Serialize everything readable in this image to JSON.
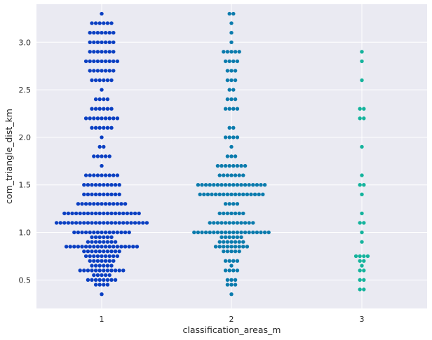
{
  "chart_data": {
    "type": "scatter",
    "subtype": "swarm",
    "title": "",
    "xlabel": "classification_areas_m",
    "ylabel": "com_triangle_dist_km",
    "categories": [
      "1",
      "2",
      "3"
    ],
    "ylim": [
      0.2,
      3.4
    ],
    "yticks": [
      "0.5",
      "1.0",
      "1.5",
      "2.0",
      "2.5",
      "3.0"
    ],
    "grid": true,
    "legend": "none",
    "colors": {
      "background": "#eaeaf2",
      "grid": "#ffffff",
      "series": [
        "#0a3fc2",
        "#0b7bad",
        "#14b39c"
      ]
    },
    "series": [
      {
        "category": "1",
        "groups": [
          {
            "y": 3.3,
            "n": 1
          },
          {
            "y": 3.2,
            "n": 6
          },
          {
            "y": 3.1,
            "n": 7
          },
          {
            "y": 3.0,
            "n": 7
          },
          {
            "y": 2.9,
            "n": 7
          },
          {
            "y": 2.8,
            "n": 9
          },
          {
            "y": 2.7,
            "n": 7
          },
          {
            "y": 2.6,
            "n": 6
          },
          {
            "y": 2.5,
            "n": 1
          },
          {
            "y": 2.4,
            "n": 4
          },
          {
            "y": 2.3,
            "n": 6
          },
          {
            "y": 2.2,
            "n": 9
          },
          {
            "y": 2.1,
            "n": 6
          },
          {
            "y": 2.0,
            "n": 1
          },
          {
            "y": 1.9,
            "n": 2
          },
          {
            "y": 1.8,
            "n": 5
          },
          {
            "y": 1.7,
            "n": 1
          },
          {
            "y": 1.6,
            "n": 9
          },
          {
            "y": 1.5,
            "n": 10
          },
          {
            "y": 1.4,
            "n": 10
          },
          {
            "y": 1.3,
            "n": 13
          },
          {
            "y": 1.2,
            "n": 20
          },
          {
            "y": 1.1,
            "n": 24
          },
          {
            "y": 1.0,
            "n": 15
          },
          {
            "y": 0.95,
            "n": 6
          },
          {
            "y": 0.9,
            "n": 8
          },
          {
            "y": 0.85,
            "n": 19
          },
          {
            "y": 0.8,
            "n": 10
          },
          {
            "y": 0.75,
            "n": 9
          },
          {
            "y": 0.7,
            "n": 7
          },
          {
            "y": 0.65,
            "n": 6
          },
          {
            "y": 0.6,
            "n": 12
          },
          {
            "y": 0.55,
            "n": 5
          },
          {
            "y": 0.5,
            "n": 8
          },
          {
            "y": 0.45,
            "n": 4
          },
          {
            "y": 0.35,
            "n": 1
          }
        ]
      },
      {
        "category": "2",
        "groups": [
          {
            "y": 3.3,
            "n": 2
          },
          {
            "y": 3.2,
            "n": 1
          },
          {
            "y": 3.1,
            "n": 1
          },
          {
            "y": 3.0,
            "n": 1
          },
          {
            "y": 2.9,
            "n": 5
          },
          {
            "y": 2.8,
            "n": 4
          },
          {
            "y": 2.7,
            "n": 3
          },
          {
            "y": 2.6,
            "n": 3
          },
          {
            "y": 2.5,
            "n": 2
          },
          {
            "y": 2.4,
            "n": 3
          },
          {
            "y": 2.3,
            "n": 4
          },
          {
            "y": 2.1,
            "n": 2
          },
          {
            "y": 2.0,
            "n": 4
          },
          {
            "y": 1.9,
            "n": 1
          },
          {
            "y": 1.8,
            "n": 3
          },
          {
            "y": 1.7,
            "n": 8
          },
          {
            "y": 1.6,
            "n": 7
          },
          {
            "y": 1.5,
            "n": 18
          },
          {
            "y": 1.4,
            "n": 17
          },
          {
            "y": 1.3,
            "n": 4
          },
          {
            "y": 1.2,
            "n": 7
          },
          {
            "y": 1.1,
            "n": 12
          },
          {
            "y": 1.0,
            "n": 20
          },
          {
            "y": 0.95,
            "n": 6
          },
          {
            "y": 0.9,
            "n": 7
          },
          {
            "y": 0.85,
            "n": 9
          },
          {
            "y": 0.8,
            "n": 5
          },
          {
            "y": 0.7,
            "n": 4
          },
          {
            "y": 0.65,
            "n": 1
          },
          {
            "y": 0.6,
            "n": 4
          },
          {
            "y": 0.5,
            "n": 3
          },
          {
            "y": 0.45,
            "n": 3
          },
          {
            "y": 0.35,
            "n": 1
          }
        ]
      },
      {
        "category": "3",
        "groups": [
          {
            "y": 2.9,
            "n": 1
          },
          {
            "y": 2.8,
            "n": 1
          },
          {
            "y": 2.6,
            "n": 1
          },
          {
            "y": 2.3,
            "n": 2
          },
          {
            "y": 2.2,
            "n": 2
          },
          {
            "y": 1.9,
            "n": 1
          },
          {
            "y": 1.6,
            "n": 1
          },
          {
            "y": 1.5,
            "n": 2
          },
          {
            "y": 1.4,
            "n": 1
          },
          {
            "y": 1.2,
            "n": 1
          },
          {
            "y": 1.1,
            "n": 2
          },
          {
            "y": 1.0,
            "n": 1
          },
          {
            "y": 0.9,
            "n": 1
          },
          {
            "y": 0.75,
            "n": 4
          },
          {
            "y": 0.7,
            "n": 2
          },
          {
            "y": 0.65,
            "n": 1
          },
          {
            "y": 0.6,
            "n": 2
          },
          {
            "y": 0.5,
            "n": 2
          },
          {
            "y": 0.4,
            "n": 2
          }
        ]
      }
    ]
  }
}
